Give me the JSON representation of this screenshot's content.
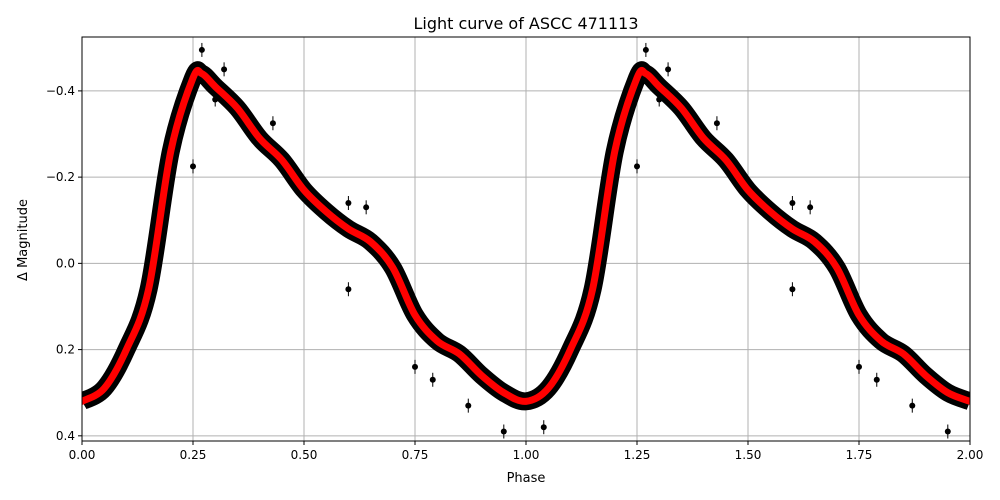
{
  "chart_data": {
    "type": "line",
    "title": "Light curve of ASCC 471113",
    "xlabel": "Phase",
    "ylabel": "Δ Magnitude",
    "xlim": [
      0,
      2
    ],
    "ylim": [
      -0.525,
      0.412
    ],
    "y_inverted": true,
    "grid": true,
    "xticks": [
      "0.00",
      "0.25",
      "0.50",
      "0.75",
      "1.00",
      "1.25",
      "1.50",
      "1.75",
      "2.00"
    ],
    "xtick_values": [
      0,
      0.25,
      0.5,
      0.75,
      1,
      1.25,
      1.5,
      1.75,
      2
    ],
    "yticks": [
      "−0.4",
      "−0.2",
      "0.0",
      "0.2",
      "0.4"
    ],
    "ytick_values": [
      -0.4,
      -0.2,
      0,
      0.2,
      0.4
    ],
    "series": [
      {
        "name": "observations",
        "kind": "scatter-band",
        "color": "#000000",
        "phase": [
          0,
          0.05,
          0.1,
          0.15,
          0.2,
          0.25,
          0.27,
          0.3,
          0.35,
          0.4,
          0.45,
          0.5,
          0.55,
          0.6,
          0.65,
          0.7,
          0.75,
          0.8,
          0.85,
          0.9,
          0.95,
          1.0
        ],
        "mag": [
          0.32,
          0.29,
          0.2,
          0.06,
          -0.26,
          -0.43,
          -0.44,
          -0.41,
          -0.36,
          -0.29,
          -0.24,
          -0.17,
          -0.12,
          -0.08,
          -0.05,
          0.01,
          0.12,
          0.18,
          0.21,
          0.26,
          0.3,
          0.32
        ],
        "outliers": [
          [
            0.27,
            -0.495
          ],
          [
            0.25,
            -0.225
          ],
          [
            0.3,
            -0.38
          ],
          [
            0.32,
            -0.45
          ],
          [
            0.43,
            -0.325
          ],
          [
            0.6,
            -0.14
          ],
          [
            0.64,
            -0.13
          ],
          [
            0.6,
            0.06
          ],
          [
            0.75,
            0.24
          ],
          [
            0.79,
            0.27
          ],
          [
            0.87,
            0.33
          ],
          [
            0.95,
            0.39
          ],
          [
            1.04,
            0.38
          ]
        ],
        "period_repeat": 1
      },
      {
        "name": "fit",
        "kind": "line",
        "color": "#ff0000",
        "phase": [
          0,
          0.05,
          0.1,
          0.15,
          0.2,
          0.25,
          0.27,
          0.3,
          0.35,
          0.4,
          0.45,
          0.5,
          0.55,
          0.6,
          0.65,
          0.7,
          0.75,
          0.8,
          0.85,
          0.9,
          0.95,
          1.0
        ],
        "mag": [
          0.32,
          0.29,
          0.2,
          0.06,
          -0.26,
          -0.43,
          -0.44,
          -0.41,
          -0.36,
          -0.29,
          -0.24,
          -0.17,
          -0.12,
          -0.08,
          -0.05,
          0.01,
          0.12,
          0.18,
          0.21,
          0.26,
          0.3,
          0.32
        ],
        "period_repeat": 1
      }
    ]
  }
}
